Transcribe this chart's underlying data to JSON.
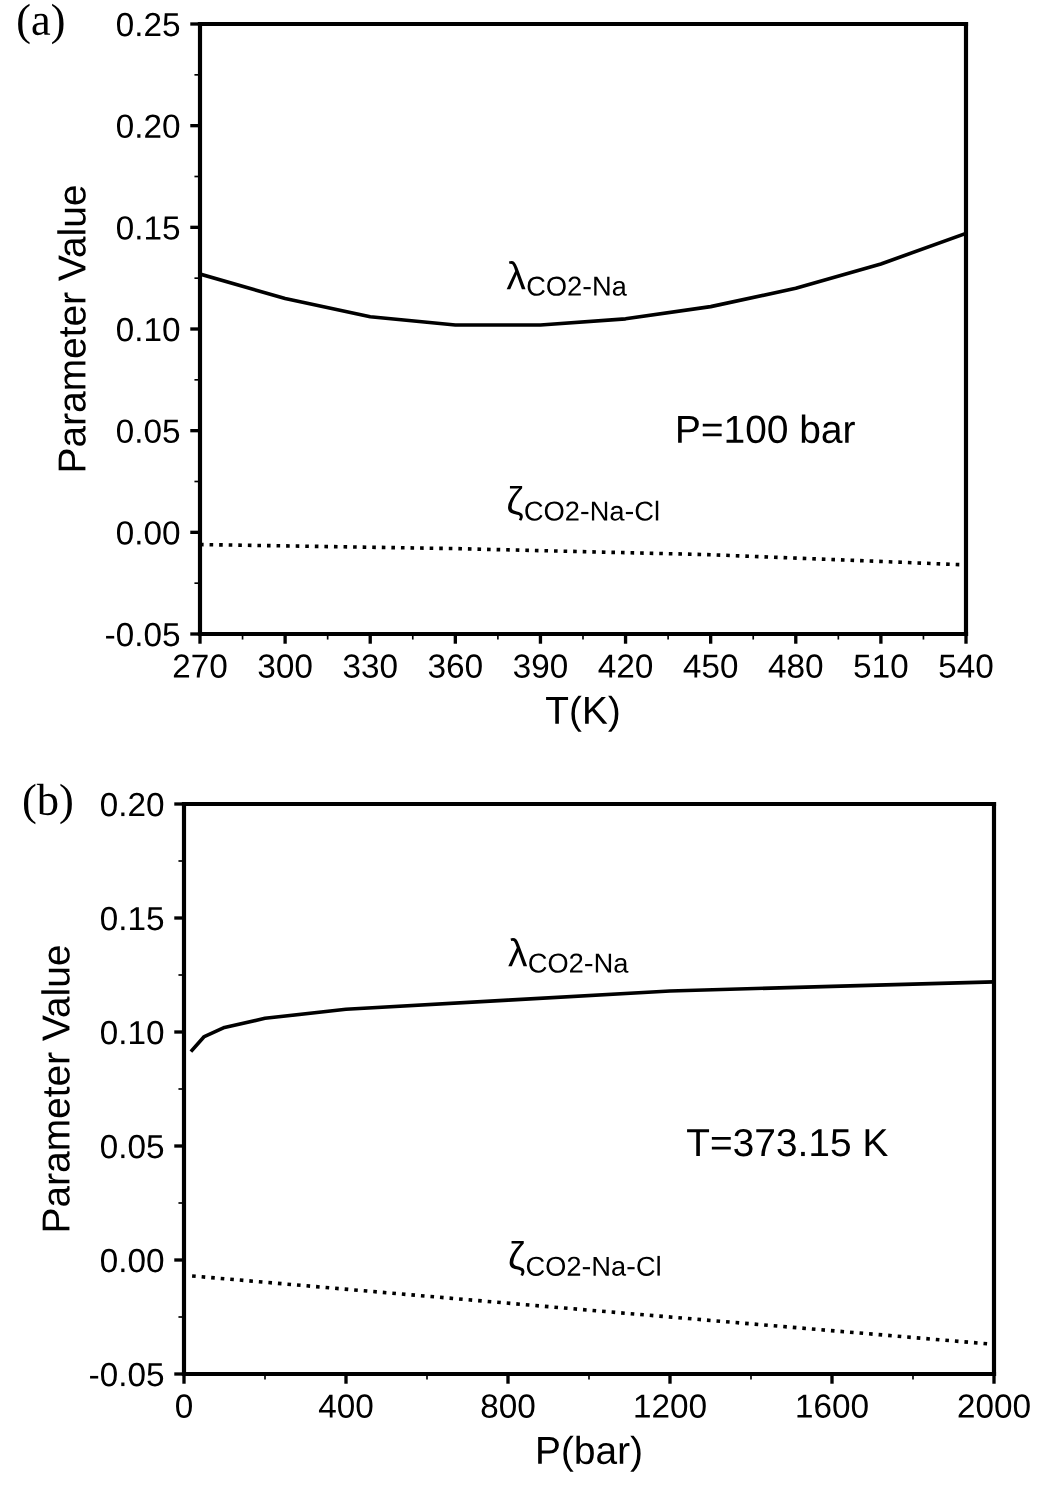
{
  "chart_data": [
    {
      "type": "line",
      "title": "(a)",
      "xlabel": "T(K)",
      "ylabel": "Parameter Value",
      "xlim": [
        270,
        540
      ],
      "xticks": [
        270,
        300,
        330,
        360,
        390,
        420,
        450,
        480,
        510,
        540
      ],
      "ylim": [
        -0.05,
        0.25
      ],
      "yticks": [
        {
          "value": -0.05,
          "label": "-0.05"
        },
        {
          "value": 0,
          "label": "0.00"
        },
        {
          "value": 0.05,
          "label": "0.05"
        },
        {
          "value": 0.1,
          "label": "0.10"
        },
        {
          "value": 0.15,
          "label": "0.15"
        },
        {
          "value": 0.2,
          "label": "0.20"
        },
        {
          "value": 0.25,
          "label": "0.25"
        }
      ],
      "grid": false,
      "legend": false,
      "annotations": [
        "P=100 bar"
      ],
      "series": [
        {
          "name": "λ$_{CO2-Na}$",
          "color": "#000000",
          "line_style": "solid",
          "x": [
            270,
            300,
            330,
            360,
            390,
            420,
            450,
            480,
            510,
            540
          ],
          "values": [
            0.127,
            0.115,
            0.106,
            0.102,
            0.102,
            0.105,
            0.111,
            0.12,
            0.132,
            0.147
          ]
        },
        {
          "name": "ζ$_{CO2-Na-Cl}$",
          "color": "#000000",
          "line_style": "dotted",
          "x": [
            270,
            360,
            450,
            540
          ],
          "values": [
            -0.006,
            -0.008,
            -0.011,
            -0.016
          ]
        }
      ]
    },
    {
      "type": "line",
      "title": "(b)",
      "xlabel": "P(bar)",
      "ylabel": "Parameter Value",
      "xlim": [
        0,
        2000
      ],
      "xticks": [
        0,
        400,
        800,
        1200,
        1600,
        2000
      ],
      "ylim": [
        -0.05,
        0.2
      ],
      "yticks": [
        {
          "value": -0.05,
          "label": "-0.05"
        },
        {
          "value": 0,
          "label": "0.00"
        },
        {
          "value": 0.05,
          "label": "0.05"
        },
        {
          "value": 0.1,
          "label": "0.10"
        },
        {
          "value": 0.15,
          "label": "0.15"
        },
        {
          "value": 0.2,
          "label": "0.20"
        }
      ],
      "grid": false,
      "legend": false,
      "annotations": [
        "T=373.15 K"
      ],
      "series": [
        {
          "name": "λ$_{CO2-Na}$",
          "color": "#000000",
          "line_style": "solid",
          "x": [
            20,
            50,
            100,
            200,
            400,
            800,
            1200,
            1600,
            2000
          ],
          "values": [
            0.092,
            0.098,
            0.102,
            0.106,
            0.11,
            0.114,
            0.118,
            0.12,
            0.122
          ]
        },
        {
          "name": "ζ$_{CO2-Na-Cl}$",
          "color": "#000000",
          "line_style": "dotted",
          "x": [
            20,
            1000,
            2000
          ],
          "values": [
            -0.007,
            -0.022,
            -0.037
          ]
        }
      ]
    }
  ]
}
